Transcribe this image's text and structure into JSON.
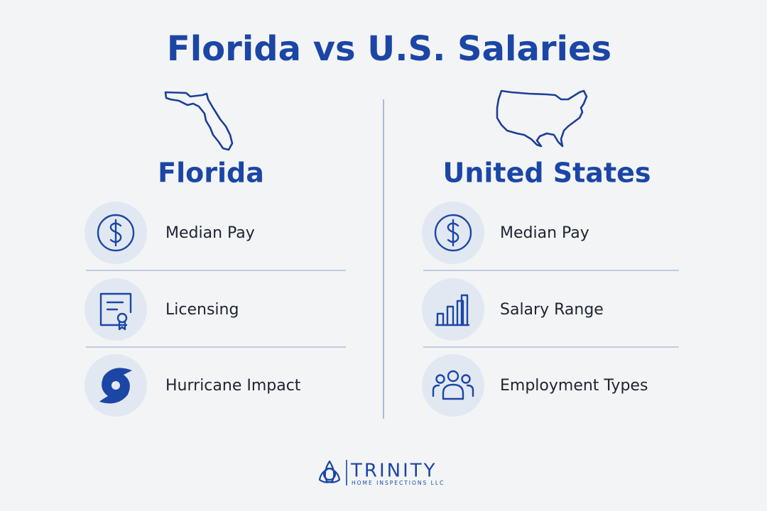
{
  "title": "Florida vs U.S. Salaries",
  "columns": [
    {
      "heading": "Florida",
      "items": [
        "Median Pay",
        "Licensing",
        "Hurricane Impact"
      ]
    },
    {
      "heading": "United States",
      "items": [
        "Median Pay",
        "Salary Range",
        "Employment Types"
      ]
    }
  ],
  "footer": {
    "brand": "TRINITY",
    "tagline": "HOME INSPECTIONS LLC"
  }
}
